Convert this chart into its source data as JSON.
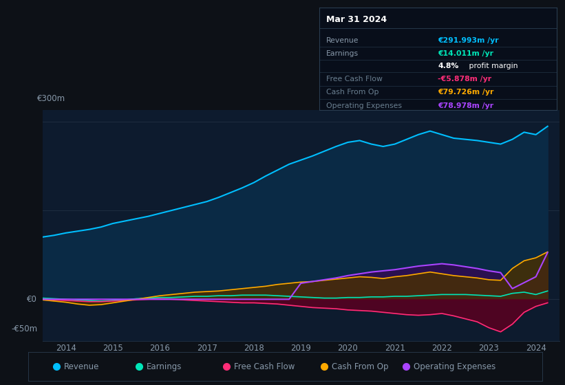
{
  "bg_color": "#0d1117",
  "plot_bg_color": "#0d1b2e",
  "grid_color": "#1e2d40",
  "text_color": "#8899aa",
  "ylabel_300": "€300m",
  "ylabel_0": "€0",
  "ylabel_neg50": "-€50m",
  "years": [
    2013.5,
    2013.75,
    2014.0,
    2014.25,
    2014.5,
    2014.75,
    2015.0,
    2015.25,
    2015.5,
    2015.75,
    2016.0,
    2016.25,
    2016.5,
    2016.75,
    2017.0,
    2017.25,
    2017.5,
    2017.75,
    2018.0,
    2018.25,
    2018.5,
    2018.75,
    2019.0,
    2019.25,
    2019.5,
    2019.75,
    2020.0,
    2020.25,
    2020.5,
    2020.75,
    2021.0,
    2021.25,
    2021.5,
    2021.75,
    2022.0,
    2022.25,
    2022.5,
    2022.75,
    2023.0,
    2023.25,
    2023.5,
    2023.75,
    2024.0,
    2024.25
  ],
  "revenue": [
    105,
    108,
    112,
    115,
    118,
    122,
    128,
    132,
    136,
    140,
    145,
    150,
    155,
    160,
    165,
    172,
    180,
    188,
    197,
    208,
    218,
    228,
    235,
    242,
    250,
    258,
    265,
    268,
    262,
    258,
    262,
    270,
    278,
    284,
    278,
    272,
    270,
    268,
    265,
    262,
    270,
    282,
    278,
    292
  ],
  "earnings": [
    2,
    1,
    0,
    -1,
    -2,
    -3,
    -2,
    -1,
    1,
    2,
    3,
    3,
    4,
    5,
    5,
    6,
    6,
    7,
    7,
    7,
    6,
    5,
    4,
    3,
    2,
    2,
    3,
    3,
    4,
    4,
    5,
    5,
    6,
    7,
    8,
    8,
    8,
    7,
    6,
    5,
    10,
    12,
    8,
    14
  ],
  "free_cash_flow": [
    0,
    -1,
    -2,
    -3,
    -4,
    -4,
    -3,
    -2,
    -1,
    0,
    1,
    0,
    -1,
    -2,
    -3,
    -4,
    -5,
    -6,
    -6,
    -7,
    -8,
    -10,
    -12,
    -14,
    -15,
    -16,
    -18,
    -19,
    -20,
    -22,
    -24,
    -26,
    -27,
    -26,
    -24,
    -28,
    -33,
    -38,
    -48,
    -55,
    -42,
    -22,
    -12,
    -6
  ],
  "cash_from_op": [
    -1,
    -3,
    -5,
    -8,
    -10,
    -9,
    -6,
    -3,
    0,
    3,
    6,
    8,
    10,
    12,
    13,
    14,
    16,
    18,
    20,
    22,
    25,
    27,
    29,
    30,
    32,
    34,
    36,
    38,
    37,
    35,
    38,
    40,
    43,
    46,
    43,
    40,
    38,
    36,
    33,
    32,
    52,
    65,
    70,
    80
  ],
  "operating_expenses": [
    0,
    0,
    0,
    0,
    0,
    0,
    0,
    0,
    0,
    0,
    0,
    0,
    0,
    0,
    0,
    0,
    0,
    0,
    0,
    0,
    0,
    0,
    27,
    30,
    33,
    36,
    40,
    43,
    46,
    48,
    50,
    53,
    56,
    58,
    60,
    58,
    55,
    52,
    48,
    45,
    18,
    28,
    38,
    79
  ],
  "revenue_color": "#00bfff",
  "earnings_color": "#00e6b8",
  "free_cash_flow_color": "#ff2d78",
  "cash_from_op_color": "#ffaa00",
  "operating_expenses_color": "#aa44ff",
  "revenue_fill": "#0a2a45",
  "earnings_fill": "#0a3530",
  "free_cash_flow_fill": "#5a0020",
  "cash_from_op_fill": "#4a3000",
  "operating_expenses_fill": "#2a1050",
  "tooltip_bg": "#080e1a",
  "tooltip_border": "#2a3d50",
  "xmin": 2013.5,
  "xmax": 2024.5,
  "ymin": -70,
  "ymax": 320,
  "xticks": [
    2014,
    2015,
    2016,
    2017,
    2018,
    2019,
    2020,
    2021,
    2022,
    2023,
    2024
  ],
  "legend_items": [
    {
      "color": "#00bfff",
      "label": "Revenue"
    },
    {
      "color": "#00e6b8",
      "label": "Earnings"
    },
    {
      "color": "#ff2d78",
      "label": "Free Cash Flow"
    },
    {
      "color": "#ffaa00",
      "label": "Cash From Op"
    },
    {
      "color": "#aa44ff",
      "label": "Operating Expenses"
    }
  ],
  "tooltip_title": "Mar 31 2024",
  "tooltip_rows": [
    {
      "label": "Revenue",
      "value": "€291.993m /yr",
      "value_color": "#00bfff",
      "dim_label": false
    },
    {
      "label": "Earnings",
      "value": "€14.011m /yr",
      "value_color": "#00e6b8",
      "dim_label": false
    },
    {
      "label": "",
      "value": "4.8% profit margin",
      "value_color": "white",
      "dim_label": false,
      "bold_prefix": "4.8%"
    },
    {
      "label": "Free Cash Flow",
      "value": "-€5.878m /yr",
      "value_color": "#ff2d78",
      "dim_label": true
    },
    {
      "label": "Cash From Op",
      "value": "€79.726m /yr",
      "value_color": "#ffaa00",
      "dim_label": true
    },
    {
      "label": "Operating Expenses",
      "value": "€78.978m /yr",
      "value_color": "#aa44ff",
      "dim_label": true
    }
  ]
}
